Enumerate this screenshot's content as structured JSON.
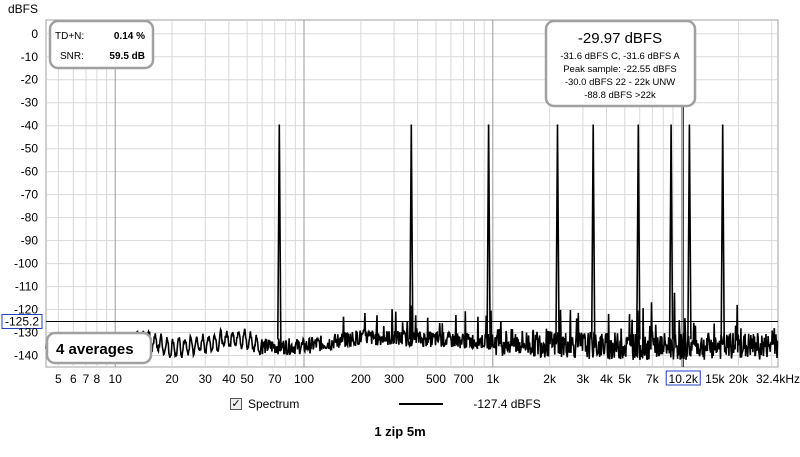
{
  "chart_data": {
    "type": "line",
    "ylabel": "dBFS",
    "xlabel": "",
    "x_unit_label": "32.4kHz",
    "xscale": "log",
    "xlim": [
      4.3,
      32400
    ],
    "ylim": [
      -145,
      6
    ],
    "yticks": [
      0,
      -10,
      -20,
      -30,
      -40,
      -50,
      -60,
      -70,
      -80,
      -90,
      -100,
      -110,
      -120,
      -130,
      -140
    ],
    "xticks": [
      {
        "v": 5,
        "t": "5"
      },
      {
        "v": 6,
        "t": "6"
      },
      {
        "v": 7,
        "t": "7"
      },
      {
        "v": 8,
        "t": "8"
      },
      {
        "v": 10,
        "t": "10"
      },
      {
        "v": 20,
        "t": "20"
      },
      {
        "v": 30,
        "t": "30"
      },
      {
        "v": 40,
        "t": "40"
      },
      {
        "v": 50,
        "t": "50"
      },
      {
        "v": 70,
        "t": "70"
      },
      {
        "v": 100,
        "t": "100"
      },
      {
        "v": 200,
        "t": "200"
      },
      {
        "v": 300,
        "t": "300"
      },
      {
        "v": 500,
        "t": "500"
      },
      {
        "v": 700,
        "t": "700"
      },
      {
        "v": 1000,
        "t": "1k"
      },
      {
        "v": 2000,
        "t": "2k"
      },
      {
        "v": 3000,
        "t": "3k"
      },
      {
        "v": 4000,
        "t": "4k"
      },
      {
        "v": 5000,
        "t": "5k"
      },
      {
        "v": 7000,
        "t": "7k"
      },
      {
        "v": 15000,
        "t": "15k"
      },
      {
        "v": 20000,
        "t": "20k"
      }
    ],
    "grid": true,
    "series": [
      {
        "name": "Spectrum",
        "color": "#000000",
        "peaks": [
          {
            "x": 74,
            "y": -39.5
          },
          {
            "x": 370,
            "y": -39.5
          },
          {
            "x": 950,
            "y": -39.5
          },
          {
            "x": 2200,
            "y": -39.5
          },
          {
            "x": 3400,
            "y": -39.5
          },
          {
            "x": 5900,
            "y": -39.5
          },
          {
            "x": 8800,
            "y": -39.5
          },
          {
            "x": 11000,
            "y": -39.5
          },
          {
            "x": 16500,
            "y": -39.5
          }
        ],
        "noise_floor": [
          {
            "x": 4.3,
            "y": -137
          },
          {
            "x": 10,
            "y": -136
          },
          {
            "x": 15,
            "y": -133
          },
          {
            "x": 20,
            "y": -137
          },
          {
            "x": 30,
            "y": -135
          },
          {
            "x": 45,
            "y": -132
          },
          {
            "x": 60,
            "y": -136
          },
          {
            "x": 100,
            "y": -136
          },
          {
            "x": 200,
            "y": -132
          },
          {
            "x": 500,
            "y": -133
          },
          {
            "x": 1000,
            "y": -134
          },
          {
            "x": 2000,
            "y": -135
          },
          {
            "x": 5000,
            "y": -136
          },
          {
            "x": 10000,
            "y": -136
          },
          {
            "x": 32400,
            "y": -136
          }
        ]
      }
    ],
    "cursor": {
      "x_label": "10.2k",
      "y_label": "-125.2",
      "x": 10200,
      "y": -125.2
    }
  },
  "tdn_box": {
    "tdn_label": "TD+N:",
    "tdn_value": "0.14 %",
    "snr_label": "SNR:",
    "snr_value": "59.5 dB"
  },
  "peak_box": {
    "main": "-29.97 dBFS",
    "lines": [
      "-31.6 dBFS C, -31.6 dBFS A",
      "Peak sample: -22.55 dBFS",
      "-30.0 dBFS 22 - 22k UNW",
      "-88.8 dBFS >22k"
    ]
  },
  "averages_label": "4 averages",
  "legend": {
    "checkbox": "✓",
    "label": "Spectrum",
    "value": "-127.4 dBFS"
  },
  "footer": "1 zip 5m"
}
